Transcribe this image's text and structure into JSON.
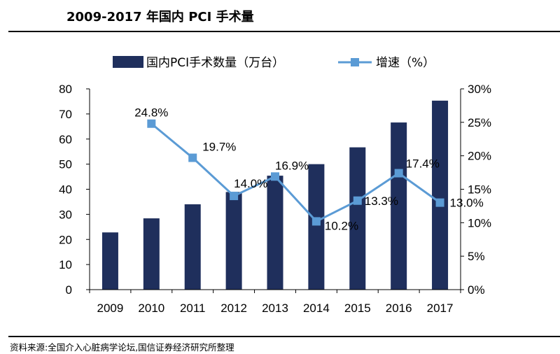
{
  "header": {
    "title": "2009-2017 年国内 PCI 手术量"
  },
  "footer": {
    "source": "资料来源:全国介入心脏病学论坛,国信证券经济研究所整理"
  },
  "colors": {
    "bar": "#1f2f5c",
    "line": "#5b9bd5",
    "axis": "#000000"
  },
  "chart_data": {
    "type": "bar",
    "title": "",
    "categories": [
      "2009",
      "2010",
      "2011",
      "2012",
      "2013",
      "2014",
      "2015",
      "2016",
      "2017"
    ],
    "series": [
      {
        "name": "国内PCI手术数量（万台）",
        "type": "bar",
        "axis": "left",
        "values": [
          22.8,
          28.4,
          34.0,
          38.9,
          45.4,
          50.0,
          56.7,
          66.6,
          75.3
        ]
      },
      {
        "name": "增速（%）",
        "type": "line",
        "axis": "right",
        "values": [
          null,
          24.8,
          19.7,
          14.0,
          16.9,
          10.2,
          13.3,
          17.4,
          13.0
        ],
        "labels": [
          "",
          "24.8%",
          "19.7%",
          "14.0%",
          "16.9%",
          "10.2%",
          "13.3%",
          "17.4%",
          "13.0%"
        ]
      }
    ],
    "y_left": {
      "ylim": [
        0,
        80
      ],
      "ticks": [
        "0",
        "10",
        "20",
        "30",
        "40",
        "50",
        "60",
        "70",
        "80"
      ]
    },
    "y_right": {
      "ylim": [
        0,
        30
      ],
      "ticks": [
        "0%",
        "5%",
        "10%",
        "15%",
        "20%",
        "25%",
        "30%"
      ]
    },
    "legend_position": "top",
    "grid": false
  }
}
